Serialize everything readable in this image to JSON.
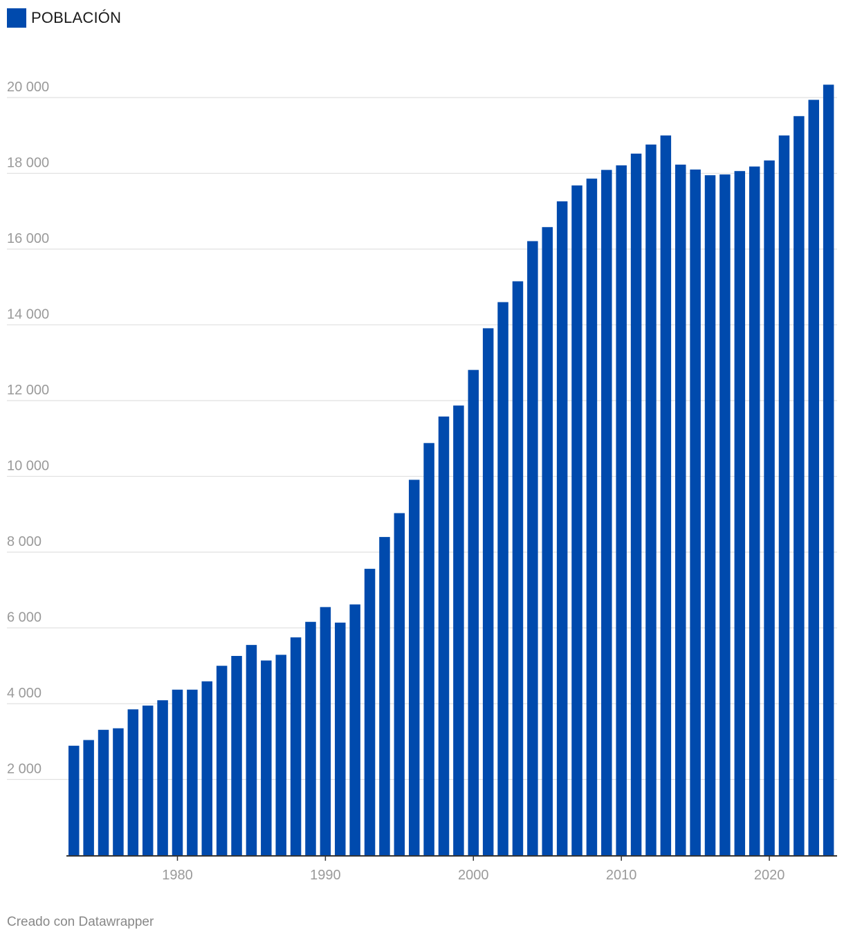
{
  "legend": {
    "label": "POBLACIÓN",
    "color": "#004aad"
  },
  "footer": {
    "credit": "Creado con Datawrapper"
  },
  "colors": {
    "bar": "#004aad",
    "grid": "#e1e1e1",
    "tick_text": "#9a9a9a",
    "axis": "#333333"
  },
  "chart_data": {
    "type": "bar",
    "title": "",
    "xlabel": "",
    "ylabel": "",
    "ylim": [
      0,
      20000
    ],
    "yticks": [
      2000,
      4000,
      6000,
      8000,
      10000,
      12000,
      14000,
      16000,
      18000,
      20000
    ],
    "ytick_labels": [
      "2 000",
      "4 000",
      "6 000",
      "8 000",
      "10 000",
      "12 000",
      "14 000",
      "16 000",
      "18 000",
      "20 000"
    ],
    "xticks": [
      1980,
      1990,
      2000,
      2010,
      2020
    ],
    "xtick_labels": [
      "1980",
      "1990",
      "2000",
      "2010",
      "2020"
    ],
    "grid": true,
    "legend_position": "top-left",
    "categories": [
      1973,
      1974,
      1975,
      1976,
      1977,
      1978,
      1979,
      1980,
      1981,
      1982,
      1983,
      1984,
      1985,
      1986,
      1987,
      1988,
      1989,
      1990,
      1991,
      1992,
      1993,
      1994,
      1995,
      1996,
      1997,
      1998,
      1999,
      2000,
      2001,
      2002,
      2003,
      2004,
      2005,
      2006,
      2007,
      2008,
      2009,
      2010,
      2011,
      2012,
      2013,
      2014,
      2015,
      2016,
      2017,
      2018,
      2019,
      2020,
      2021,
      2022,
      2023,
      2024
    ],
    "series": [
      {
        "name": "POBLACIÓN",
        "values": [
          2890,
          3040,
          3310,
          3350,
          3850,
          3950,
          4090,
          4370,
          4370,
          4590,
          5000,
          5260,
          5550,
          5140,
          5290,
          5750,
          6160,
          6550,
          6140,
          6620,
          7560,
          8400,
          9030,
          9910,
          10880,
          11580,
          11870,
          12810,
          13910,
          14600,
          15150,
          16210,
          16580,
          17260,
          17680,
          17860,
          18090,
          18210,
          18520,
          18760,
          19000,
          18230,
          18100,
          17950,
          17970,
          18060,
          18180,
          18340,
          19000,
          19510,
          19940,
          20340
        ]
      }
    ]
  }
}
